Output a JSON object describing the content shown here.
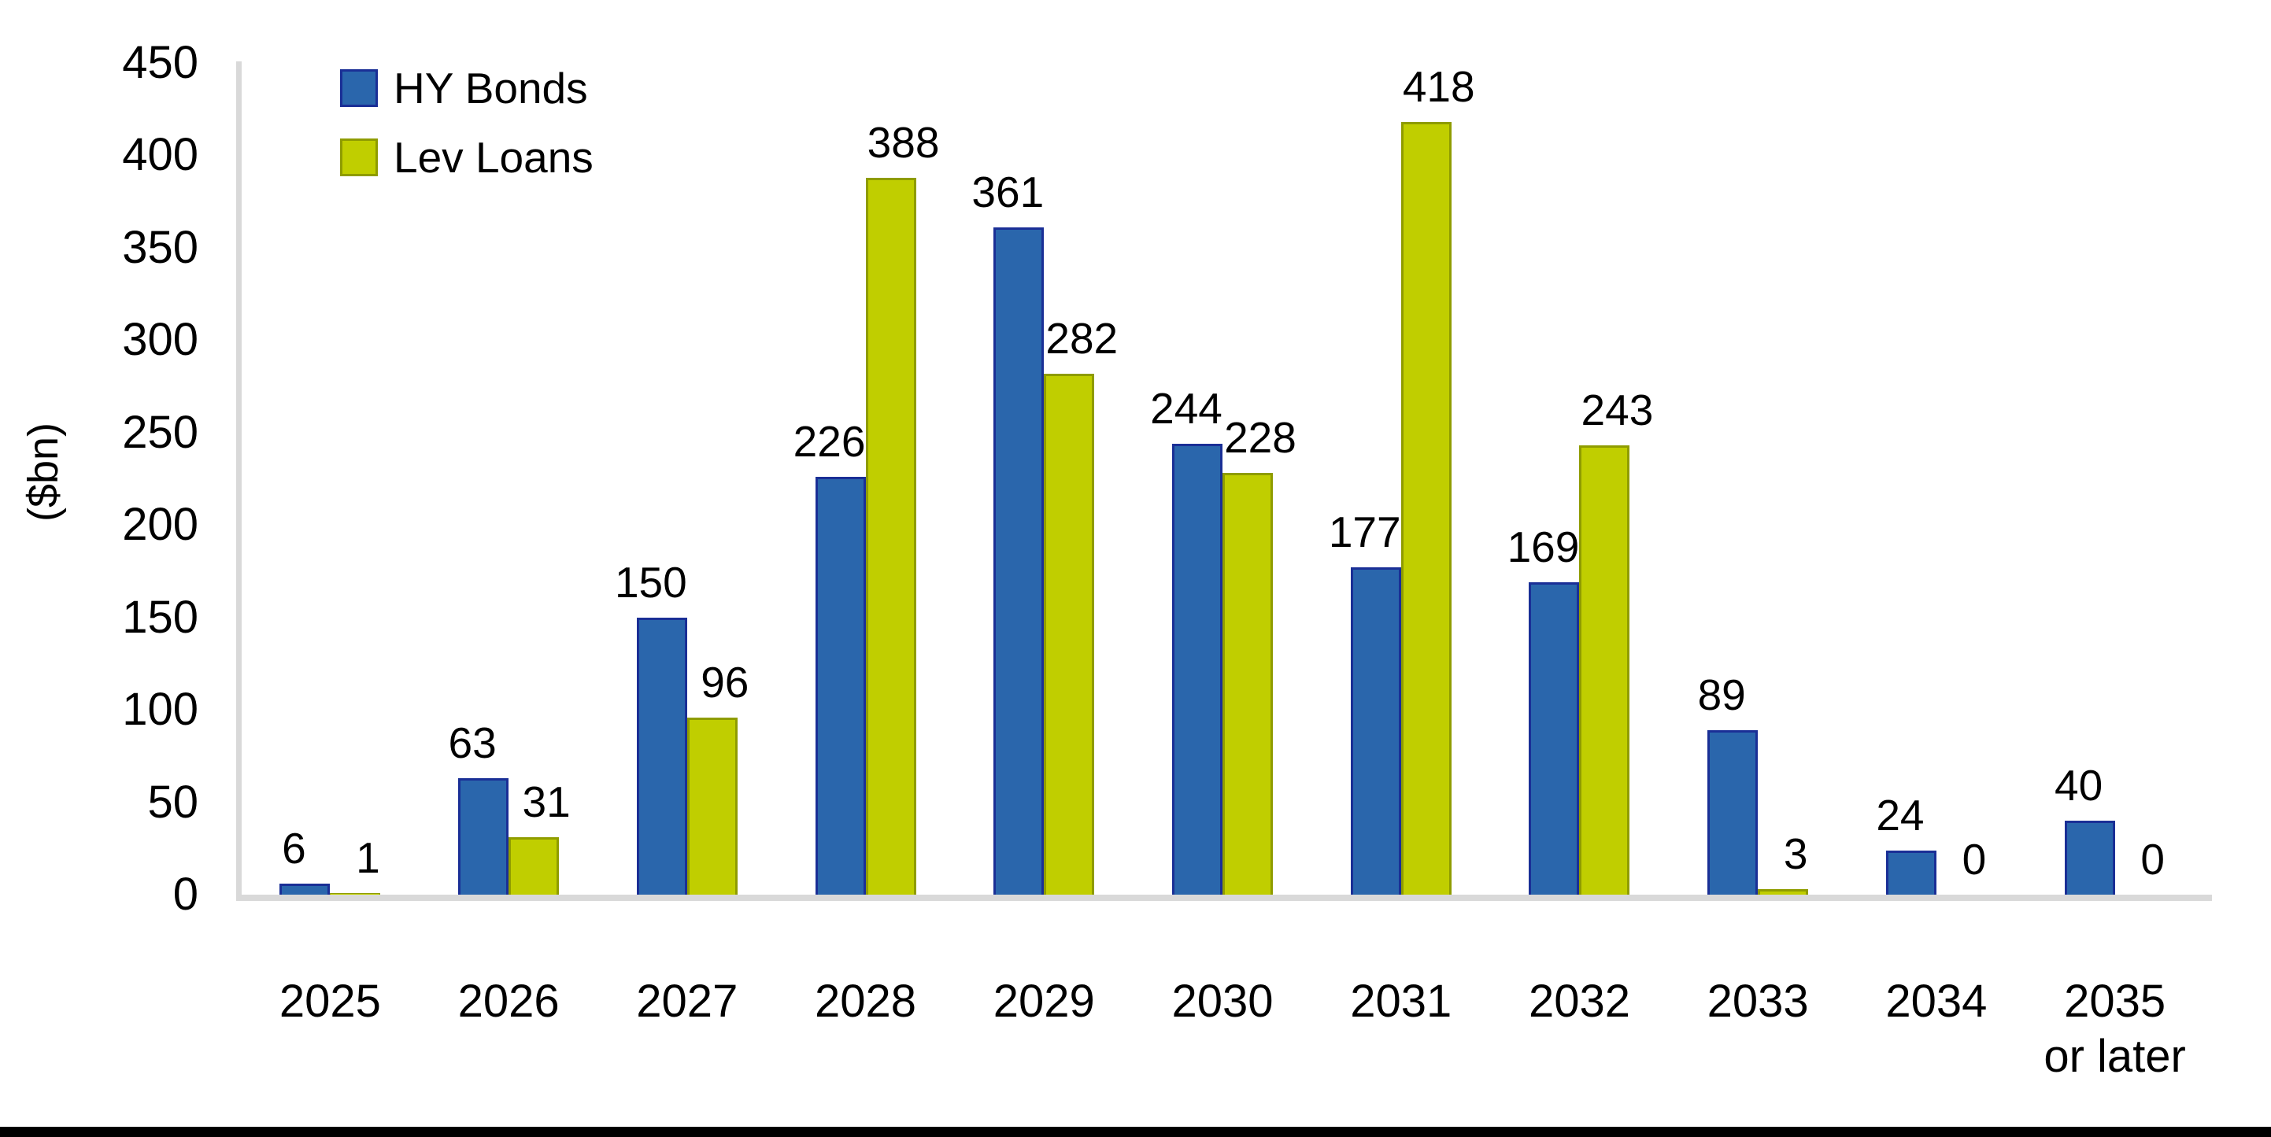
{
  "chart_data": {
    "type": "bar",
    "title": "",
    "xlabel": "",
    "ylabel": "($bn)",
    "ylim": [
      0,
      450
    ],
    "ytick_step": 50,
    "yticks": [
      0,
      50,
      100,
      150,
      200,
      250,
      300,
      350,
      400,
      450
    ],
    "grid": false,
    "legend_position": "top-left",
    "categories": [
      "2025",
      "2026",
      "2027",
      "2028",
      "2029",
      "2030",
      "2031",
      "2032",
      "2033",
      "2034",
      "2035"
    ],
    "last_category_sublabel": "or later",
    "series": [
      {
        "name": "HY Bonds",
        "color": "#2A66AC",
        "border_color": "#1A2F96",
        "values": [
          6,
          63,
          150,
          226,
          361,
          244,
          177,
          169,
          89,
          24,
          40
        ]
      },
      {
        "name": "Lev Loans",
        "color": "#C0CE00",
        "border_color": "#8F9C00",
        "values": [
          1,
          31,
          96,
          388,
          282,
          228,
          418,
          243,
          3,
          0,
          0
        ]
      }
    ]
  },
  "colors": {
    "axis_line": "#D9D9D9",
    "data_label": "#000000",
    "background": "#FFFFFF",
    "bottom_band": "#000000"
  }
}
